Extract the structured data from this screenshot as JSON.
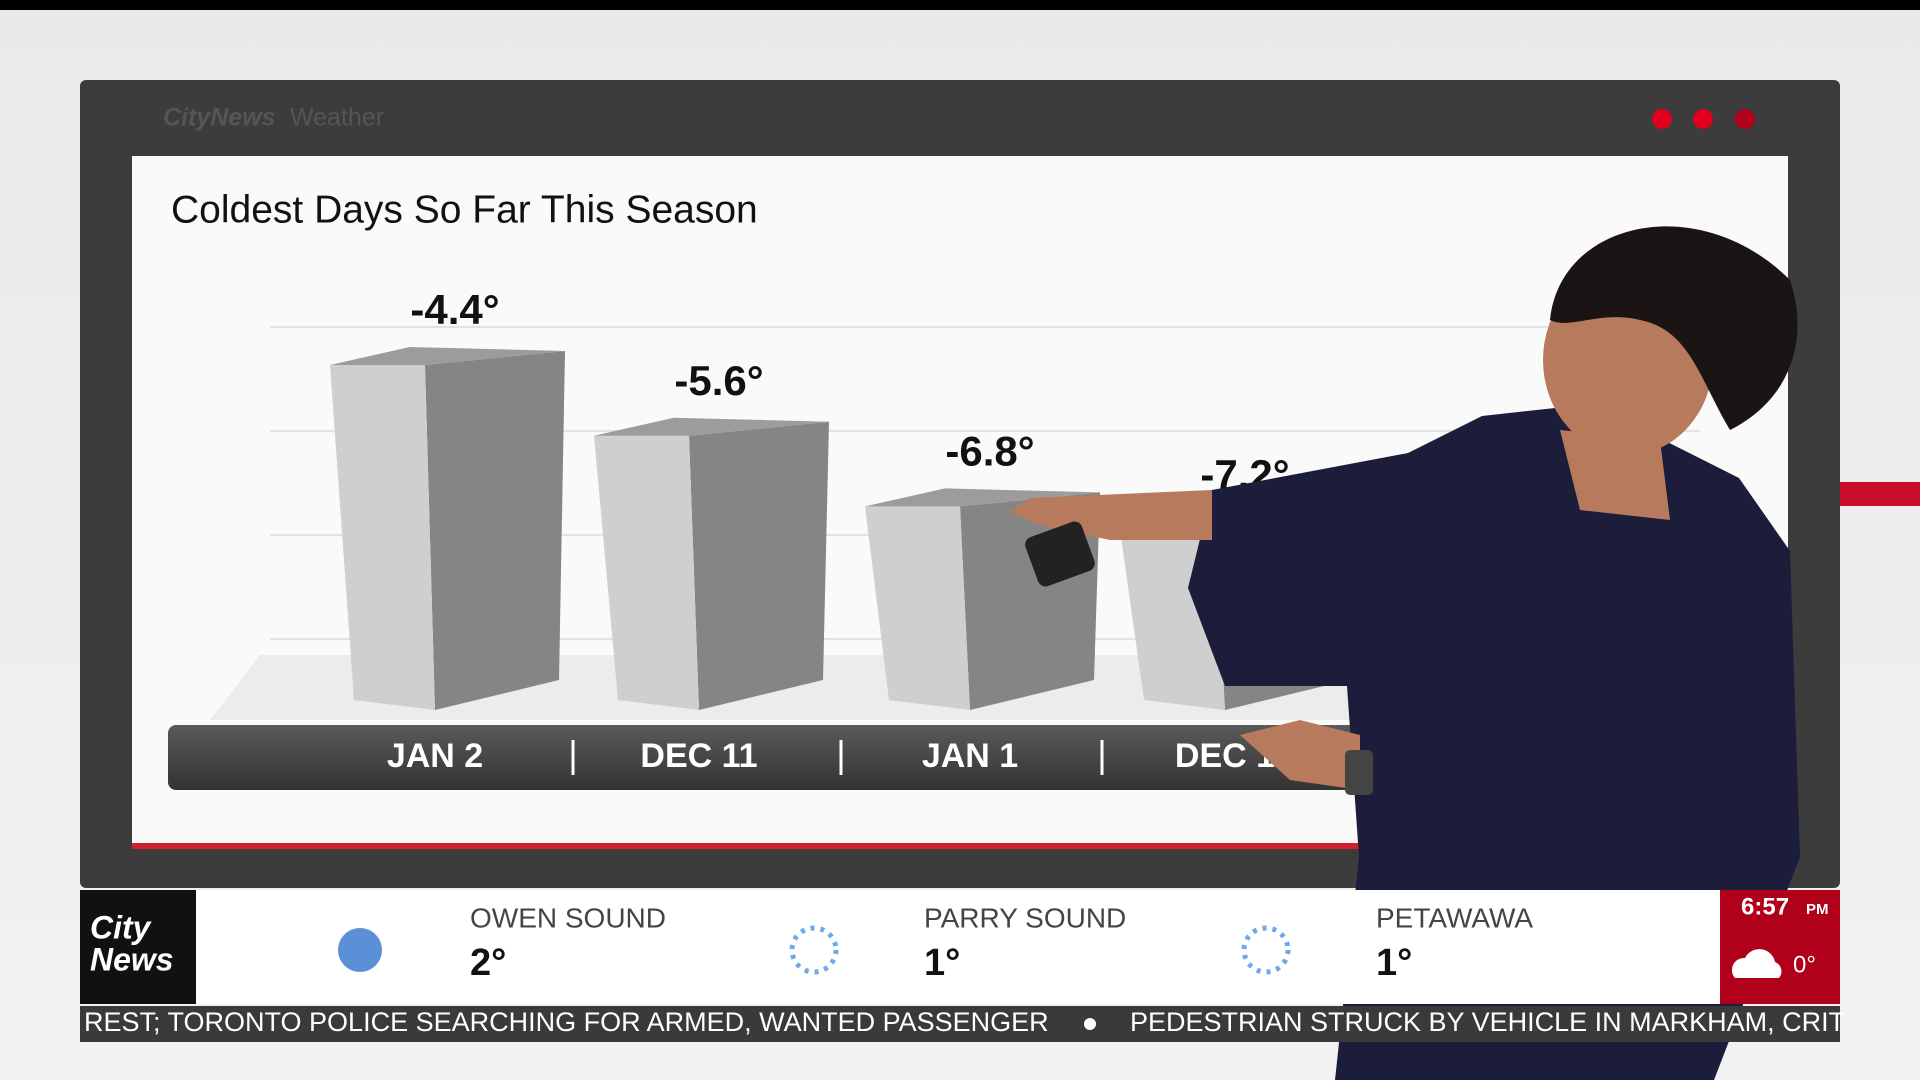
{
  "header": {
    "brand": "CityNews",
    "section": "Weather"
  },
  "chart_data": {
    "type": "bar",
    "title": "Coldest Days So Far This Season",
    "categories": [
      "JAN 2",
      "DEC 11",
      "JAN 1",
      "DEC 1"
    ],
    "values": [
      -4.4,
      -5.6,
      -6.8,
      -7.2
    ],
    "value_labels": [
      "-4.4°",
      "-5.6°",
      "-6.8°",
      "-7.2°"
    ],
    "color": "#8a8a8a"
  },
  "weather_strip": {
    "logo": [
      "City",
      "News"
    ],
    "cities": [
      {
        "name": "OWEN SOUND",
        "temp": "2°"
      },
      {
        "name": "PARRY SOUND",
        "temp": "1°"
      },
      {
        "name": "PETAWAWA",
        "temp": "1°"
      }
    ],
    "clock": {
      "time": "6:57",
      "period": "PM"
    },
    "current_temp": "0°"
  },
  "ticker": [
    "REST; TORONTO POLICE SEARCHING FOR ARMED, WANTED PASSENGER",
    "PEDESTRIAN STRUCK BY VEHICLE IN MARKHAM, CRIT"
  ]
}
